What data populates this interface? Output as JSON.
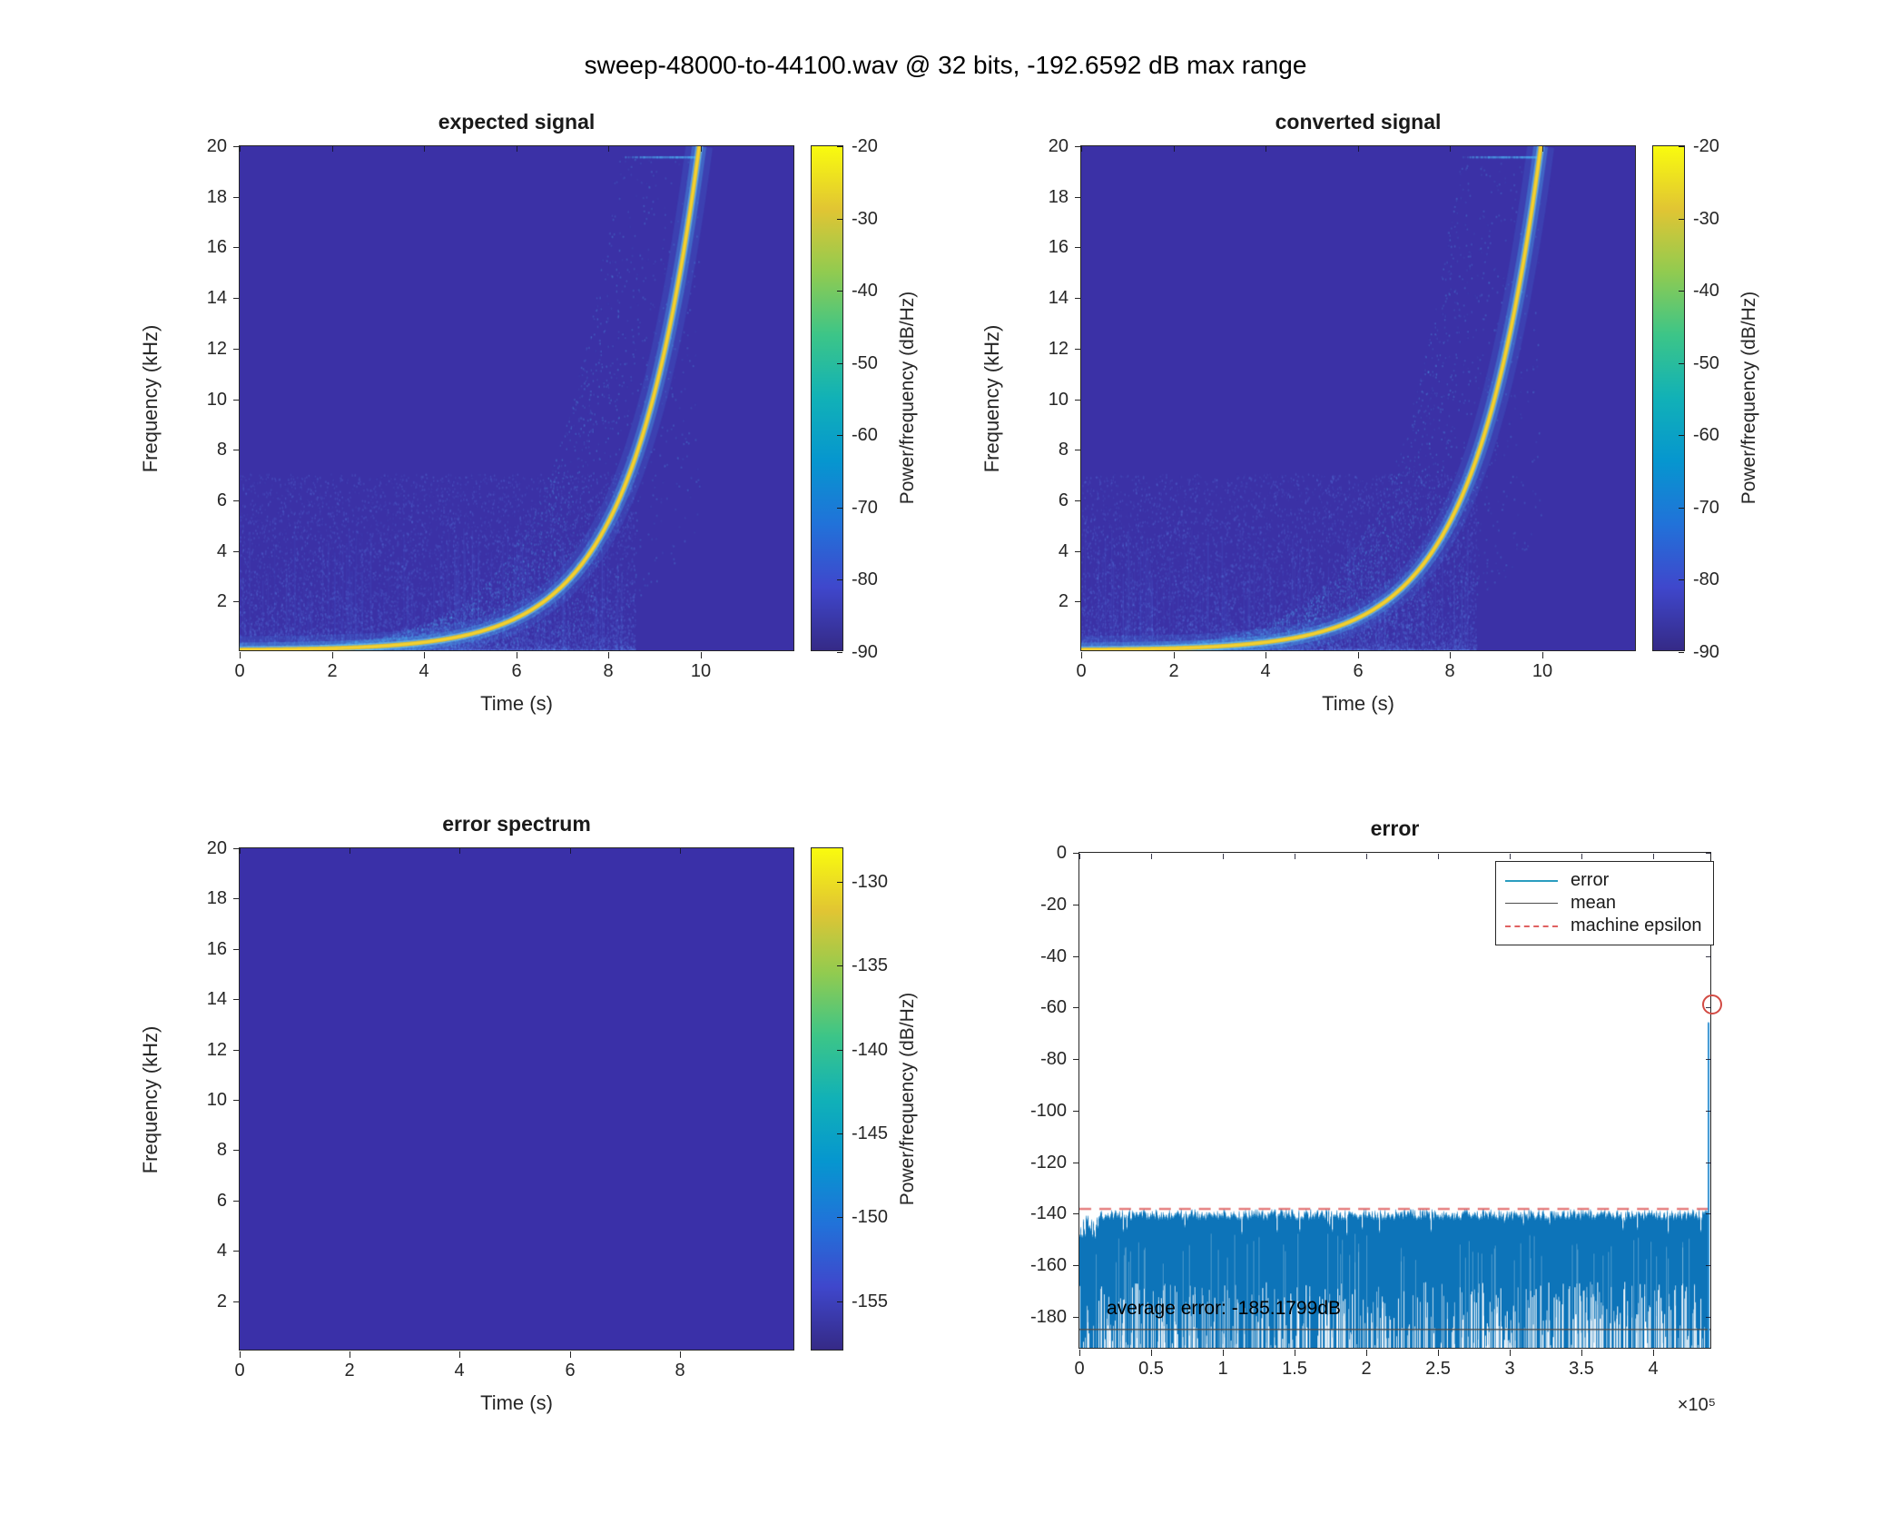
{
  "figure": {
    "title": "sweep-48000-to-44100.wav @ 32 bits, -192.6592 dB max range"
  },
  "colors": {
    "spectrogram_background": "#3b31a6",
    "error_spectrum_background": "#3a30a8",
    "sweep_core_yellow": "#f2d233",
    "sweep_glow_cyan": "#53b8e8",
    "error_noise_fill": "#0d74b9",
    "error_line": "#2a9dbf",
    "mean_line": "#4d4d4d",
    "machine_epsilon_line": "#e06161",
    "end_marker": "#d24a43",
    "parula": [
      "#352a87",
      "#3f47cc",
      "#2172d9",
      "#0696cf",
      "#11b1b7",
      "#3cc588",
      "#91cb50",
      "#e1c533",
      "#f9fb0e"
    ]
  },
  "chart_data": [
    {
      "id": "expected-signal",
      "type": "heatmap",
      "title": "expected signal",
      "xlabel": "Time (s)",
      "ylabel": "Frequency (kHz)",
      "xlim": [
        0,
        12.05
      ],
      "ylim": [
        0,
        20
      ],
      "xticks": [
        0,
        2,
        4,
        6,
        8,
        10
      ],
      "yticks": [
        2,
        4,
        6,
        8,
        10,
        12,
        14,
        16,
        18,
        20
      ],
      "colorbar": {
        "label": "Power/frequency (dB/Hz)",
        "range_db": [
          -20,
          -90
        ],
        "ticks_db": [
          -20,
          -30,
          -40,
          -50,
          -60,
          -70,
          -80,
          -90
        ]
      },
      "signal": {
        "kind": "exponential-sweep",
        "f0_hz": 20,
        "f1_hz": 20000,
        "duration_s": 10,
        "peak_power_db": -20,
        "floor_power_db": -90
      }
    },
    {
      "id": "converted-signal",
      "type": "heatmap",
      "title": "converted signal",
      "xlabel": "Time (s)",
      "ylabel": "Frequency (kHz)",
      "xlim": [
        0,
        12.05
      ],
      "ylim": [
        0,
        20
      ],
      "xticks": [
        0,
        2,
        4,
        6,
        8,
        10
      ],
      "yticks": [
        2,
        4,
        6,
        8,
        10,
        12,
        14,
        16,
        18,
        20
      ],
      "colorbar": {
        "label": "Power/frequency (dB/Hz)",
        "range_db": [
          -20,
          -90
        ],
        "ticks_db": [
          -20,
          -30,
          -40,
          -50,
          -60,
          -70,
          -80,
          -90
        ]
      },
      "signal": {
        "kind": "exponential-sweep",
        "f0_hz": 20,
        "f1_hz": 20000,
        "duration_s": 10,
        "peak_power_db": -20,
        "floor_power_db": -90
      }
    },
    {
      "id": "error-spectrum",
      "type": "heatmap",
      "title": "error spectrum",
      "xlabel": "Time (s)",
      "ylabel": "Frequency (kHz)",
      "xlim": [
        0,
        10.1
      ],
      "ylim": [
        0,
        20
      ],
      "xticks": [
        0,
        2,
        4,
        6,
        8
      ],
      "yticks": [
        2,
        4,
        6,
        8,
        10,
        12,
        14,
        16,
        18,
        20
      ],
      "colorbar": {
        "label": "Power/frequency (dB/Hz)",
        "range_db": [
          -128,
          -158
        ],
        "ticks_db": [
          -130,
          -135,
          -140,
          -145,
          -150,
          -155
        ]
      },
      "signal": {
        "kind": "uniform",
        "value_db": -157
      }
    },
    {
      "id": "error",
      "type": "line",
      "title": "error",
      "xlim": [
        0,
        441000
      ],
      "ylim": [
        -192.6592,
        0
      ],
      "xticks": [
        0,
        50000,
        100000,
        150000,
        200000,
        250000,
        300000,
        350000,
        400000
      ],
      "xtick_labels": [
        "0",
        "0.5",
        "1",
        "1.5",
        "2",
        "2.5",
        "3",
        "3.5",
        "4"
      ],
      "x_multiplier": "×10⁵",
      "yticks": [
        0,
        -20,
        -40,
        -60,
        -80,
        -100,
        -120,
        -140,
        -160,
        -180
      ],
      "legend": [
        {
          "label": "error",
          "color": "#2a9dbf",
          "style": "solid"
        },
        {
          "label": "mean",
          "color": "#4d4d4d",
          "style": "solid"
        },
        {
          "label": "machine epsilon",
          "color": "#e06161",
          "style": "dashed"
        }
      ],
      "annotation": "average error: -185.1799dB",
      "series": {
        "noise_band_top_db": -139.5,
        "noise_band_bottom_db": -192.6592,
        "mean_db": -185.1799,
        "machine_epsilon_db": -138.5,
        "end_spike": {
          "x": 441000,
          "peak_db": -59,
          "marker": "red-circle"
        }
      }
    }
  ]
}
